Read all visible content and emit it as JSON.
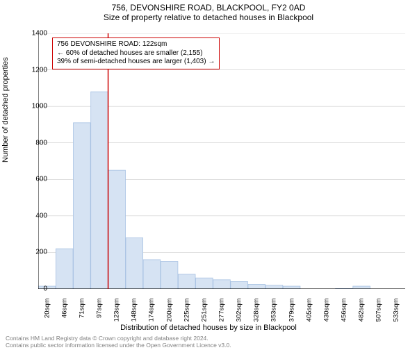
{
  "chart": {
    "type": "histogram",
    "title_line1": "756, DEVONSHIRE ROAD, BLACKPOOL, FY2 0AD",
    "title_line2": "Size of property relative to detached houses in Blackpool",
    "title_fontsize": 12,
    "yaxis_label": "Number of detached properties",
    "xaxis_label": "Distribution of detached houses by size in Blackpool",
    "axis_label_fontsize": 11,
    "background_color": "#ffffff",
    "axis_color": "#000000",
    "bar_fill": "#d6e3f3",
    "bar_stroke": "#a8c2e3",
    "ref_line_color": "#cc0000",
    "annot_border_color": "#cc0000",
    "grid_color": "#bfbfbf",
    "ylim": [
      0,
      1400
    ],
    "yticks": [
      0,
      200,
      400,
      600,
      800,
      1000,
      1200,
      1400
    ],
    "xtick_labels": [
      "20sqm",
      "46sqm",
      "71sqm",
      "97sqm",
      "123sqm",
      "148sqm",
      "174sqm",
      "200sqm",
      "225sqm",
      "251sqm",
      "277sqm",
      "302sqm",
      "328sqm",
      "353sqm",
      "379sqm",
      "405sqm",
      "430sqm",
      "456sqm",
      "482sqm",
      "507sqm",
      "533sqm"
    ],
    "bars": [
      15,
      220,
      910,
      1080,
      650,
      280,
      160,
      150,
      80,
      60,
      50,
      40,
      25,
      20,
      15,
      0,
      0,
      2,
      15,
      0,
      0
    ],
    "ref_line_x_index": 4,
    "annotation": {
      "line1": "756 DEVONSHIRE ROAD: 122sqm",
      "line2": "← 60% of detached houses are smaller (2,155)",
      "line3": "39% of semi-detached houses are larger (1,403) →"
    },
    "footer_line1": "Contains HM Land Registry data © Crown copyright and database right 2024.",
    "footer_line2": "Contains public sector information licensed under the Open Government Licence v3.0.",
    "footer_color": "#808080",
    "tick_fontsize": 10
  }
}
